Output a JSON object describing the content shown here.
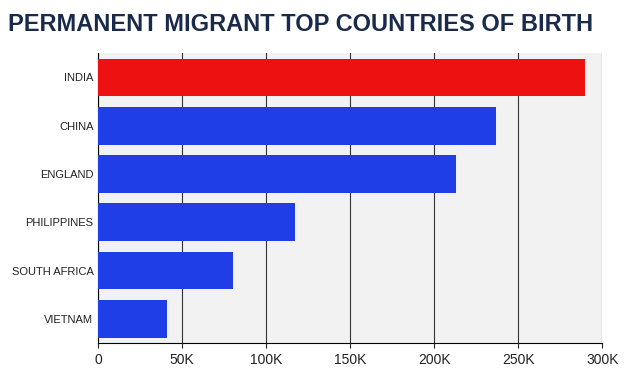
{
  "chart_data": {
    "type": "bar",
    "orientation": "horizontal",
    "title": "PERMANENT MIGRANT TOP COUNTRIES OF BIRTH",
    "categories": [
      "INDIA",
      "CHINA",
      "ENGLAND",
      "PHILIPPINES",
      "SOUTH AFRICA",
      "VIETNAM"
    ],
    "values": [
      290000,
      237000,
      213000,
      117000,
      80000,
      41000
    ],
    "colors": [
      "#ee1111",
      "#1f3ee8",
      "#1f3ee8",
      "#1f3ee8",
      "#1f3ee8",
      "#1f3ee8"
    ],
    "xlim": [
      0,
      300000
    ],
    "xticks": [
      0,
      {
        "value": 50000,
        "label": "50K"
      },
      {
        "value": 100000,
        "label": "100K"
      },
      {
        "value": 150000,
        "label": "150K"
      },
      {
        "value": 200000,
        "label": "200K"
      },
      {
        "value": 250000,
        "label": "250K"
      },
      {
        "value": 300000,
        "label": "300K"
      }
    ],
    "grid": true
  }
}
